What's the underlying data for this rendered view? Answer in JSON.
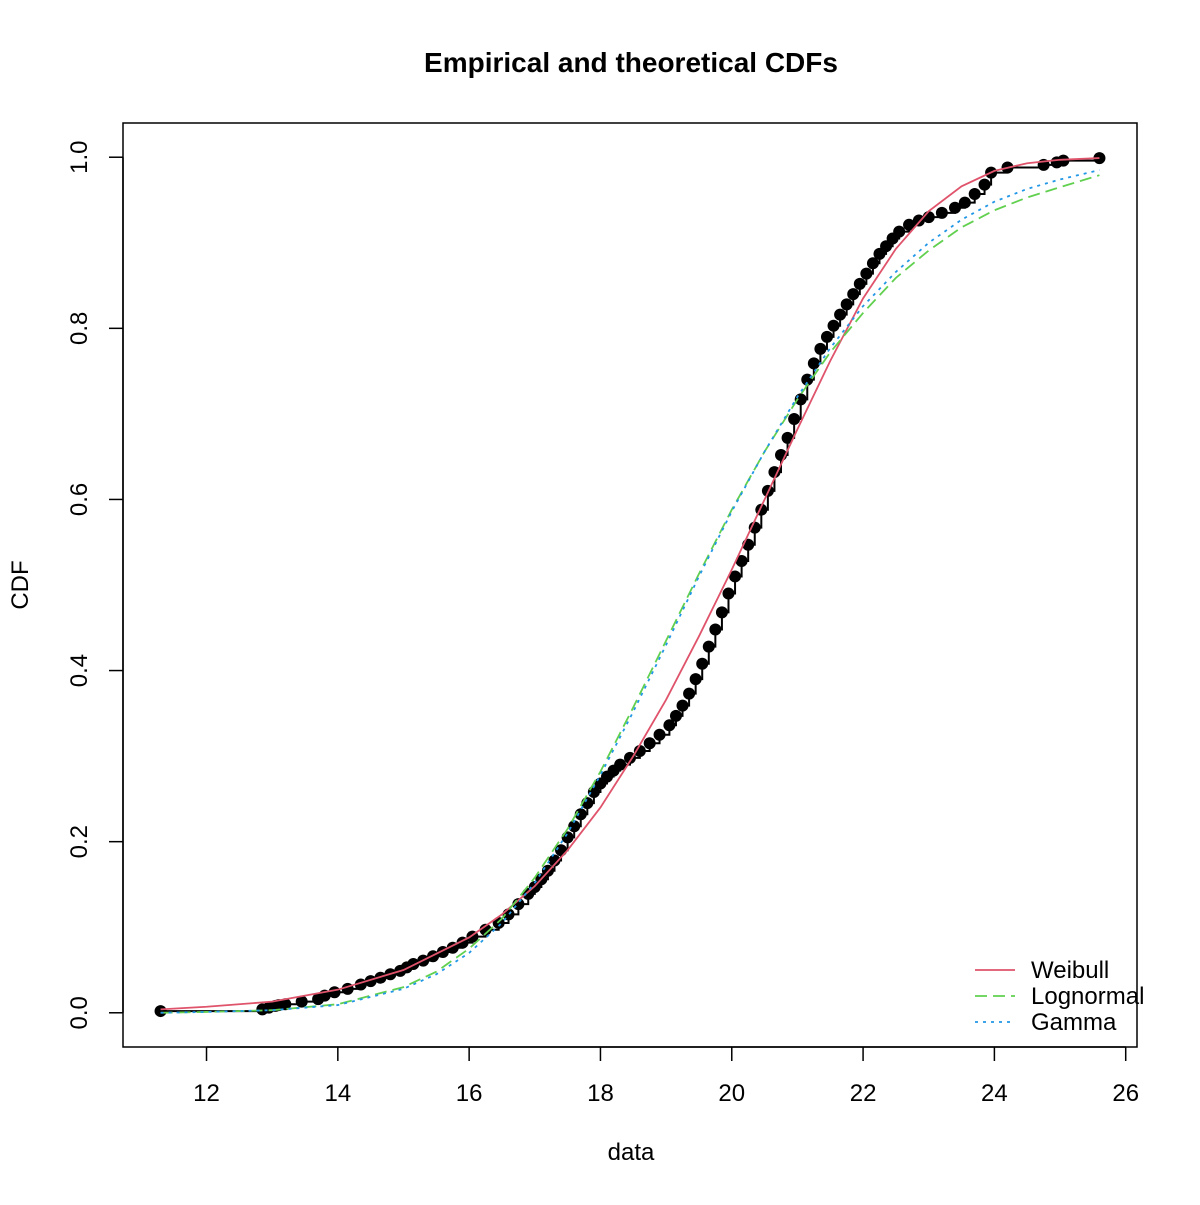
{
  "chart_data": {
    "type": "line",
    "title": "Empirical and theoretical CDFs",
    "xlabel": "data",
    "ylabel": "CDF",
    "xlim": [
      11.3,
      25.6
    ],
    "ylim": [
      0.0,
      1.0
    ],
    "x_ticks": [
      12,
      14,
      16,
      18,
      20,
      22,
      24,
      26
    ],
    "x_tick_labels": [
      "12",
      "14",
      "16",
      "18",
      "20",
      "22",
      "24",
      "26"
    ],
    "y_ticks": [
      0.0,
      0.2,
      0.4,
      0.6,
      0.8,
      1.0
    ],
    "y_tick_labels": [
      "0.0",
      "0.2",
      "0.4",
      "0.6",
      "0.8",
      "1.0"
    ],
    "grid": false,
    "legend_position": "bottom-right",
    "empirical": {
      "x": [
        11.3,
        12.85,
        12.95,
        13.05,
        13.1,
        13.2,
        13.45,
        13.7,
        13.8,
        13.95,
        14.15,
        14.35,
        14.5,
        14.65,
        14.8,
        14.95,
        15.05,
        15.15,
        15.3,
        15.45,
        15.6,
        15.75,
        15.9,
        16.05,
        16.25,
        16.45,
        16.6,
        16.75,
        16.9,
        17.0,
        17.1,
        17.2,
        17.3,
        17.4,
        17.5,
        17.6,
        17.7,
        17.8,
        17.9,
        18.0,
        18.1,
        18.2,
        18.3,
        18.45,
        18.6,
        18.75,
        18.9,
        19.05,
        19.15,
        19.25,
        19.35,
        19.45,
        19.55,
        19.65,
        19.75,
        19.85,
        19.95,
        20.05,
        20.15,
        20.25,
        20.35,
        20.45,
        20.55,
        20.65,
        20.75,
        20.85,
        20.95,
        21.05,
        21.15,
        21.25,
        21.35,
        21.45,
        21.55,
        21.65,
        21.75,
        21.85,
        21.95,
        22.05,
        22.15,
        22.25,
        22.35,
        22.45,
        22.55,
        22.7,
        22.85,
        23.0,
        23.2,
        23.4,
        23.55,
        23.7,
        23.85,
        23.95,
        24.2,
        24.75,
        24.95,
        25.05,
        25.6
      ],
      "y": [
        0.002,
        0.004,
        0.006,
        0.008,
        0.009,
        0.01,
        0.013,
        0.016,
        0.02,
        0.024,
        0.028,
        0.033,
        0.037,
        0.041,
        0.045,
        0.049,
        0.053,
        0.057,
        0.061,
        0.066,
        0.071,
        0.076,
        0.082,
        0.089,
        0.097,
        0.105,
        0.115,
        0.127,
        0.139,
        0.147,
        0.156,
        0.166,
        0.178,
        0.19,
        0.205,
        0.218,
        0.232,
        0.245,
        0.258,
        0.268,
        0.276,
        0.283,
        0.29,
        0.298,
        0.306,
        0.315,
        0.325,
        0.336,
        0.347,
        0.359,
        0.373,
        0.39,
        0.408,
        0.428,
        0.448,
        0.468,
        0.49,
        0.51,
        0.528,
        0.547,
        0.567,
        0.588,
        0.61,
        0.632,
        0.652,
        0.672,
        0.694,
        0.717,
        0.74,
        0.759,
        0.776,
        0.79,
        0.803,
        0.816,
        0.828,
        0.84,
        0.852,
        0.864,
        0.876,
        0.887,
        0.896,
        0.905,
        0.913,
        0.921,
        0.926,
        0.93,
        0.935,
        0.941,
        0.947,
        0.957,
        0.968,
        0.982,
        0.988,
        0.991,
        0.994,
        0.996,
        0.999
      ]
    },
    "series": [
      {
        "name": "Weibull",
        "color": "#DF536B",
        "dash": "solid",
        "x": [
          11.3,
          12.0,
          13.0,
          14.0,
          15.0,
          16.0,
          16.5,
          17.0,
          17.5,
          18.0,
          18.5,
          19.0,
          19.5,
          20.0,
          20.5,
          21.0,
          21.5,
          22.0,
          22.5,
          23.0,
          23.5,
          24.0,
          24.5,
          25.0,
          25.6
        ],
        "y": [
          0.004,
          0.007,
          0.013,
          0.027,
          0.05,
          0.088,
          0.115,
          0.148,
          0.19,
          0.24,
          0.3,
          0.366,
          0.44,
          0.518,
          0.6,
          0.682,
          0.762,
          0.835,
          0.893,
          0.937,
          0.966,
          0.984,
          0.993,
          0.997,
          0.999
        ]
      },
      {
        "name": "Lognormal",
        "color": "#61D04F",
        "dash": "dashed",
        "x": [
          11.3,
          12.0,
          13.0,
          14.0,
          15.0,
          15.5,
          16.0,
          16.5,
          17.0,
          17.5,
          18.0,
          18.5,
          19.0,
          19.5,
          20.0,
          20.5,
          21.0,
          21.5,
          22.0,
          22.5,
          23.0,
          23.5,
          24.0,
          24.5,
          25.0,
          25.6
        ],
        "y": [
          0.0,
          0.001,
          0.003,
          0.01,
          0.03,
          0.048,
          0.075,
          0.11,
          0.158,
          0.215,
          0.282,
          0.357,
          0.435,
          0.513,
          0.588,
          0.656,
          0.717,
          0.772,
          0.818,
          0.859,
          0.891,
          0.918,
          0.938,
          0.953,
          0.965,
          0.979
        ]
      },
      {
        "name": "Gamma",
        "color": "#2297E6",
        "dash": "dotted",
        "x": [
          11.3,
          12.0,
          13.0,
          14.0,
          15.0,
          15.5,
          16.0,
          16.5,
          17.0,
          17.5,
          18.0,
          18.5,
          19.0,
          19.5,
          20.0,
          20.5,
          21.0,
          21.5,
          22.0,
          22.5,
          23.0,
          23.5,
          24.0,
          24.5,
          25.0,
          25.6
        ],
        "y": [
          0.0,
          0.001,
          0.003,
          0.009,
          0.028,
          0.045,
          0.07,
          0.105,
          0.152,
          0.21,
          0.278,
          0.352,
          0.43,
          0.51,
          0.586,
          0.656,
          0.72,
          0.777,
          0.826,
          0.866,
          0.9,
          0.927,
          0.948,
          0.963,
          0.974,
          0.985
        ]
      }
    ]
  }
}
